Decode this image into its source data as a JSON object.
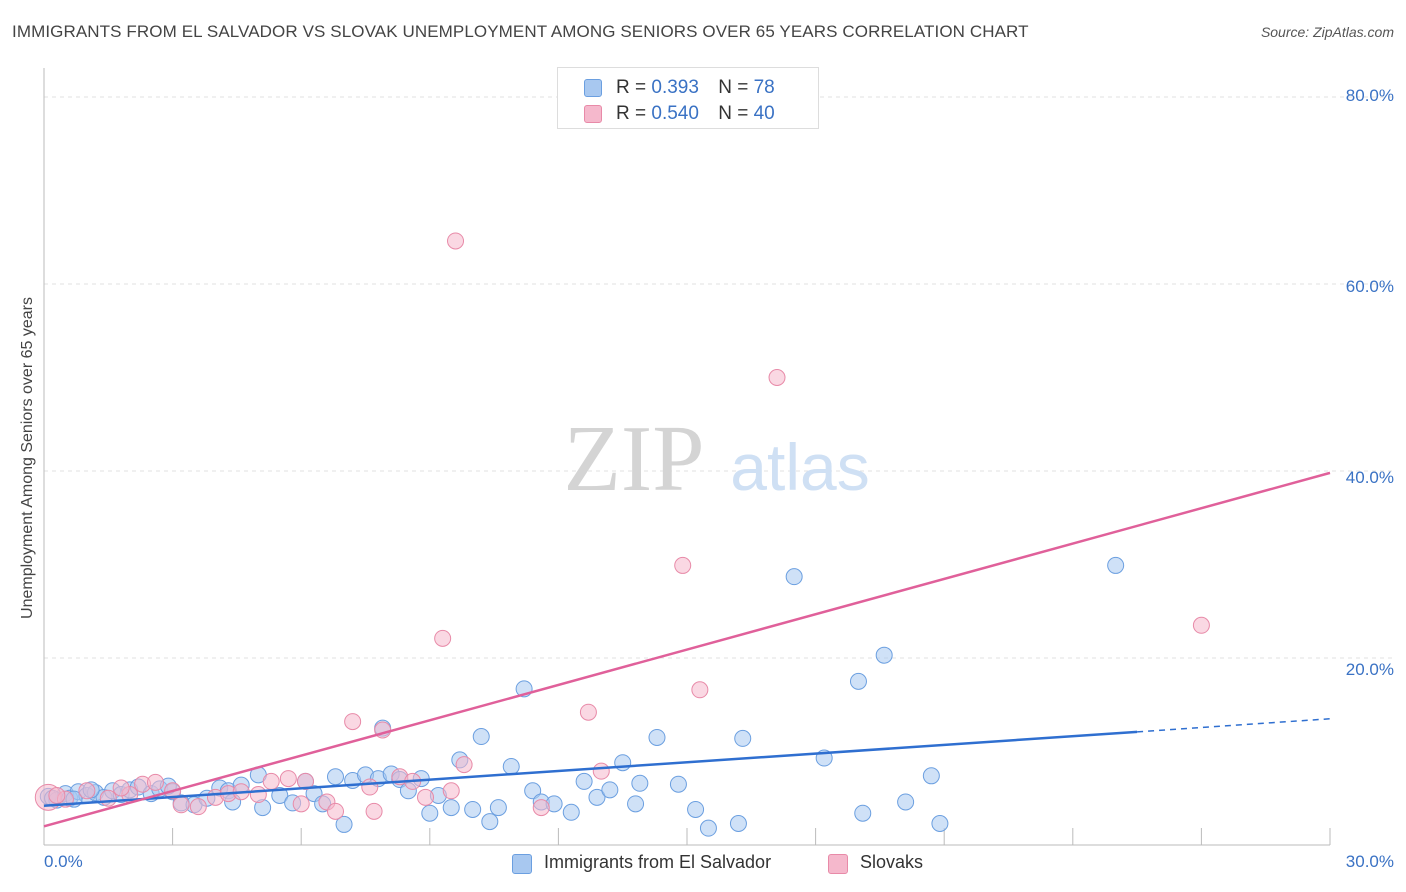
{
  "chart_data": {
    "type": "scatter",
    "title": "IMMIGRANTS FROM EL SALVADOR VS SLOVAK UNEMPLOYMENT AMONG SENIORS OVER 65 YEARS CORRELATION CHART",
    "source": "Source: ZipAtlas.com",
    "xlabel": "",
    "ylabel": "Unemployment Among Seniors over 65 years",
    "xlim": [
      0,
      30
    ],
    "ylim": [
      0,
      80
    ],
    "x_tick_labels": [
      "0.0%",
      "30.0%"
    ],
    "y_ticks": [
      20,
      40,
      60,
      80
    ],
    "y_tick_labels": [
      "20.0%",
      "40.0%",
      "60.0%",
      "80.0%"
    ],
    "grid": true,
    "watermark": {
      "zip": "ZIP",
      "atlas": "atlas"
    },
    "legend_stats": [
      {
        "series": "Immigrants from El Salvador",
        "r_label": "R =",
        "r": "0.393",
        "n_label": "N =",
        "n": "78",
        "color": "#a8c8f0",
        "stroke": "#6b9fe0"
      },
      {
        "series": "Slovaks",
        "r_label": "R =",
        "r": "0.540",
        "n_label": "N =",
        "n": "40",
        "color": "#f5b8cc",
        "stroke": "#e88aa8"
      }
    ],
    "series": [
      {
        "name": "Immigrants from El Salvador",
        "color": "#a8c8f0",
        "stroke": "#6b9fe0",
        "trend": {
          "x0": 0,
          "y0": 4.2,
          "x1": 25.5,
          "y1": 12.1,
          "dash_to_x": 30,
          "dash_to_y": 13.5,
          "color": "#2f6fd0"
        },
        "points": [
          [
            0.1,
            5.2
          ],
          [
            0.3,
            4.8
          ],
          [
            0.5,
            5.5
          ],
          [
            0.6,
            5.0
          ],
          [
            0.8,
            5.7
          ],
          [
            1.0,
            5.3
          ],
          [
            1.2,
            5.6
          ],
          [
            1.4,
            5.1
          ],
          [
            1.6,
            5.8
          ],
          [
            1.8,
            5.4
          ],
          [
            2.0,
            5.9
          ],
          [
            2.2,
            6.2
          ],
          [
            2.5,
            5.5
          ],
          [
            2.7,
            6.0
          ],
          [
            3.0,
            5.7
          ],
          [
            3.2,
            4.5
          ],
          [
            3.5,
            4.3
          ],
          [
            3.8,
            5.0
          ],
          [
            4.1,
            6.1
          ],
          [
            4.3,
            5.8
          ],
          [
            4.6,
            6.4
          ],
          [
            5.0,
            7.5
          ],
          [
            5.1,
            4.0
          ],
          [
            5.5,
            5.3
          ],
          [
            5.8,
            4.5
          ],
          [
            6.1,
            6.8
          ],
          [
            6.3,
            5.5
          ],
          [
            6.5,
            4.4
          ],
          [
            6.8,
            7.3
          ],
          [
            7.0,
            2.2
          ],
          [
            7.2,
            6.9
          ],
          [
            7.5,
            7.5
          ],
          [
            7.8,
            7.1
          ],
          [
            7.9,
            12.5
          ],
          [
            8.1,
            7.6
          ],
          [
            8.3,
            7.0
          ],
          [
            8.5,
            5.8
          ],
          [
            8.8,
            7.1
          ],
          [
            9.0,
            3.4
          ],
          [
            9.2,
            5.3
          ],
          [
            9.5,
            4.0
          ],
          [
            9.7,
            9.1
          ],
          [
            10.0,
            3.8
          ],
          [
            10.2,
            11.6
          ],
          [
            10.4,
            2.5
          ],
          [
            10.6,
            4.0
          ],
          [
            10.9,
            8.4
          ],
          [
            11.2,
            16.7
          ],
          [
            11.4,
            5.8
          ],
          [
            11.6,
            4.6
          ],
          [
            11.9,
            4.4
          ],
          [
            12.3,
            3.5
          ],
          [
            12.6,
            6.8
          ],
          [
            12.9,
            5.1
          ],
          [
            13.2,
            5.9
          ],
          [
            13.5,
            8.8
          ],
          [
            13.8,
            4.4
          ],
          [
            13.9,
            6.6
          ],
          [
            14.3,
            11.5
          ],
          [
            14.8,
            6.5
          ],
          [
            15.2,
            3.8
          ],
          [
            15.5,
            1.8
          ],
          [
            16.2,
            2.3
          ],
          [
            16.3,
            11.4
          ],
          [
            17.5,
            28.7
          ],
          [
            18.2,
            9.3
          ],
          [
            19.0,
            17.5
          ],
          [
            19.1,
            3.4
          ],
          [
            19.6,
            20.3
          ],
          [
            20.1,
            4.6
          ],
          [
            20.7,
            7.4
          ],
          [
            20.9,
            2.3
          ],
          [
            25.0,
            29.9
          ],
          [
            0.2,
            5.0
          ],
          [
            0.7,
            4.9
          ],
          [
            2.9,
            6.3
          ],
          [
            4.4,
            4.6
          ],
          [
            1.1,
            5.9
          ]
        ]
      },
      {
        "name": "Slovaks",
        "color": "#f5b8cc",
        "stroke": "#e88aa8",
        "trend": {
          "x0": 0,
          "y0": 2.0,
          "x1": 30,
          "y1": 39.8,
          "color": "#e0609a"
        },
        "points": [
          [
            0.1,
            5.1
          ],
          [
            0.5,
            4.9
          ],
          [
            1.0,
            5.8
          ],
          [
            1.5,
            5.0
          ],
          [
            2.0,
            5.4
          ],
          [
            2.3,
            6.5
          ],
          [
            2.6,
            6.7
          ],
          [
            3.0,
            5.8
          ],
          [
            3.2,
            4.3
          ],
          [
            3.6,
            4.1
          ],
          [
            4.0,
            5.1
          ],
          [
            4.3,
            5.5
          ],
          [
            4.6,
            5.7
          ],
          [
            5.0,
            5.4
          ],
          [
            5.3,
            6.8
          ],
          [
            5.7,
            7.1
          ],
          [
            6.0,
            4.4
          ],
          [
            6.1,
            6.8
          ],
          [
            6.6,
            4.6
          ],
          [
            6.8,
            3.6
          ],
          [
            7.2,
            13.2
          ],
          [
            7.6,
            6.2
          ],
          [
            7.7,
            3.6
          ],
          [
            7.9,
            12.3
          ],
          [
            8.3,
            7.3
          ],
          [
            8.6,
            6.8
          ],
          [
            8.9,
            5.1
          ],
          [
            9.3,
            22.1
          ],
          [
            9.5,
            5.8
          ],
          [
            9.6,
            64.6
          ],
          [
            9.8,
            8.6
          ],
          [
            11.6,
            4.0
          ],
          [
            12.7,
            14.2
          ],
          [
            13.0,
            7.9
          ],
          [
            14.9,
            29.9
          ],
          [
            15.3,
            16.6
          ],
          [
            17.1,
            50.0
          ],
          [
            27.0,
            23.5
          ],
          [
            0.3,
            5.3
          ],
          [
            1.8,
            6.1
          ]
        ]
      }
    ]
  }
}
